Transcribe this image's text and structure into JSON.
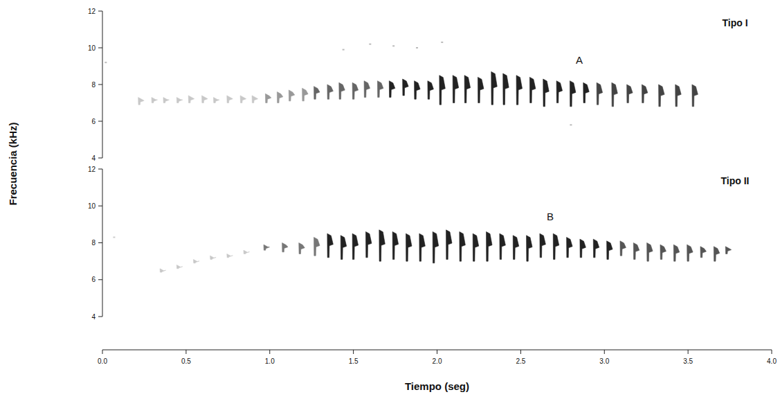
{
  "chart_data": [
    {
      "type": "spectrogram",
      "title": "Tipo I",
      "annotation": "A",
      "y_label": "Frecuencia (kHz)",
      "xlim": [
        0,
        4
      ],
      "ylim": [
        4,
        12
      ],
      "yticks": [
        4,
        6,
        8,
        10,
        12
      ],
      "tick_labels": "y",
      "grid": false,
      "series": [
        {
          "type": "syllable",
          "x": [
            0.22,
            0.3,
            0.37,
            0.45,
            0.52,
            0.6,
            0.67,
            0.75,
            0.83,
            0.9,
            0.98,
            1.05,
            1.12,
            1.2,
            1.27,
            1.35,
            1.42,
            1.5,
            1.57,
            1.65,
            1.72,
            1.8,
            1.87,
            1.95,
            2.02,
            2.1,
            2.17,
            2.25,
            2.33,
            2.4,
            2.48,
            2.56,
            2.64,
            2.72,
            2.8,
            2.88,
            2.96,
            3.05,
            3.14,
            3.23,
            3.33,
            3.43,
            3.53
          ],
          "values": [
            7.3,
            7.3,
            7.3,
            7.3,
            7.4,
            7.4,
            7.3,
            7.4,
            7.4,
            7.4,
            7.5,
            7.6,
            7.7,
            7.8,
            7.9,
            8.0,
            8.1,
            8.1,
            8.2,
            8.2,
            8.2,
            8.3,
            8.2,
            8.2,
            8.5,
            8.5,
            8.5,
            8.4,
            8.7,
            8.6,
            8.5,
            8.4,
            8.3,
            8.2,
            8.2,
            8.1,
            8.1,
            8.1,
            8.0,
            8.0,
            8.0,
            8.0,
            8.0
          ],
          "low": [
            6.9,
            7.0,
            7.0,
            7.0,
            7.0,
            7.0,
            7.0,
            7.0,
            7.0,
            7.0,
            7.0,
            7.0,
            7.1,
            7.1,
            7.2,
            7.2,
            7.2,
            7.2,
            7.3,
            7.3,
            7.3,
            7.4,
            7.2,
            7.2,
            6.9,
            7.0,
            7.0,
            7.0,
            6.9,
            6.9,
            6.9,
            7.0,
            6.8,
            7.0,
            6.8,
            7.0,
            6.9,
            6.8,
            7.0,
            7.0,
            6.8,
            6.8,
            6.8
          ],
          "colors": [
            "#c8c8c8",
            "#c8c8c8",
            "#c8c8c8",
            "#c8c8c8",
            "#c8c8c8",
            "#c8c8c8",
            "#c8c8c8",
            "#c8c8c8",
            "#c8c8c8",
            "#c8c8c8",
            "#999999",
            "#999999",
            "#999999",
            "#999999",
            "#666666",
            "#666666",
            "#666666",
            "#666666",
            "#666666",
            "#666666",
            "#222222",
            "#222222",
            "#222222",
            "#222222",
            "#222222",
            "#222222",
            "#222222",
            "#222222",
            "#222222",
            "#222222",
            "#222222",
            "#222222",
            "#222222",
            "#222222",
            "#222222",
            "#222222",
            "#444444",
            "#444444",
            "#444444",
            "#444444",
            "#444444",
            "#444444",
            "#444444"
          ]
        },
        {
          "type": "scatter",
          "color": "#bbbbbb",
          "x": [
            0.02,
            1.44,
            1.6,
            1.74,
            1.88,
            2.03,
            2.8
          ],
          "values": [
            9.2,
            9.9,
            10.2,
            10.1,
            10.0,
            10.3,
            5.8
          ]
        }
      ]
    },
    {
      "type": "spectrogram",
      "title": "Tipo II",
      "annotation": "B",
      "x_label": "Tiempo (seg)",
      "xlim": [
        0,
        4
      ],
      "ylim": [
        4,
        12
      ],
      "yticks": [
        4,
        6,
        8,
        10,
        12
      ],
      "xticks": [
        {
          "value": 0,
          "label": "0.0"
        },
        {
          "value": 0.5,
          "label": "0.5"
        },
        {
          "value": 1,
          "label": "1.0"
        },
        {
          "value": 1.5,
          "label": "1.5"
        },
        {
          "value": 2,
          "label": "2.0"
        },
        {
          "value": 2.5,
          "label": "2.5"
        },
        {
          "value": 3,
          "label": "3.0"
        },
        {
          "value": 3.5,
          "label": "3.5"
        },
        {
          "value": 4,
          "label": "4.0"
        }
      ],
      "grid": false,
      "series": [
        {
          "type": "syllable",
          "x": [
            0.35,
            0.45,
            0.55,
            0.65,
            0.75,
            0.85,
            0.97,
            1.08,
            1.18,
            1.27,
            1.35,
            1.43,
            1.5,
            1.58,
            1.66,
            1.74,
            1.82,
            1.9,
            1.98,
            2.06,
            2.14,
            2.22,
            2.3,
            2.38,
            2.46,
            2.54,
            2.62,
            2.7,
            2.78,
            2.86,
            2.94,
            3.02,
            3.1,
            3.18,
            3.26,
            3.34,
            3.42,
            3.5,
            3.58,
            3.66,
            3.73
          ],
          "values": [
            6.6,
            6.8,
            7.1,
            7.3,
            7.4,
            7.6,
            7.9,
            8.0,
            8.0,
            8.3,
            8.5,
            8.4,
            8.5,
            8.6,
            8.7,
            8.6,
            8.5,
            8.5,
            8.6,
            8.7,
            8.6,
            8.5,
            8.6,
            8.5,
            8.4,
            8.4,
            8.5,
            8.5,
            8.3,
            8.2,
            8.2,
            8.1,
            8.1,
            8.0,
            8.0,
            7.9,
            7.9,
            7.9,
            7.8,
            7.8,
            7.8
          ],
          "low": [
            6.4,
            6.6,
            6.9,
            7.1,
            7.2,
            7.4,
            7.6,
            7.5,
            7.4,
            7.3,
            7.2,
            7.1,
            7.1,
            7.2,
            7.0,
            7.1,
            7.0,
            7.0,
            6.9,
            7.1,
            7.0,
            7.0,
            7.0,
            7.1,
            7.1,
            7.0,
            7.2,
            7.1,
            7.2,
            7.2,
            7.2,
            7.1,
            7.3,
            7.1,
            7.0,
            7.1,
            7.0,
            7.0,
            7.2,
            7.0,
            7.4
          ],
          "colors": [
            "#c8c8c8",
            "#c8c8c8",
            "#c8c8c8",
            "#c8c8c8",
            "#c8c8c8",
            "#c8c8c8",
            "#777777",
            "#777777",
            "#777777",
            "#777777",
            "#222222",
            "#222222",
            "#222222",
            "#222222",
            "#222222",
            "#222222",
            "#222222",
            "#222222",
            "#222222",
            "#222222",
            "#222222",
            "#222222",
            "#222222",
            "#222222",
            "#222222",
            "#222222",
            "#222222",
            "#222222",
            "#222222",
            "#222222",
            "#222222",
            "#222222",
            "#555555",
            "#555555",
            "#555555",
            "#555555",
            "#555555",
            "#555555",
            "#555555",
            "#555555",
            "#555555"
          ]
        },
        {
          "type": "scatter",
          "color": "#cccccc",
          "x": [
            0.07
          ],
          "values": [
            8.3
          ]
        }
      ]
    }
  ]
}
